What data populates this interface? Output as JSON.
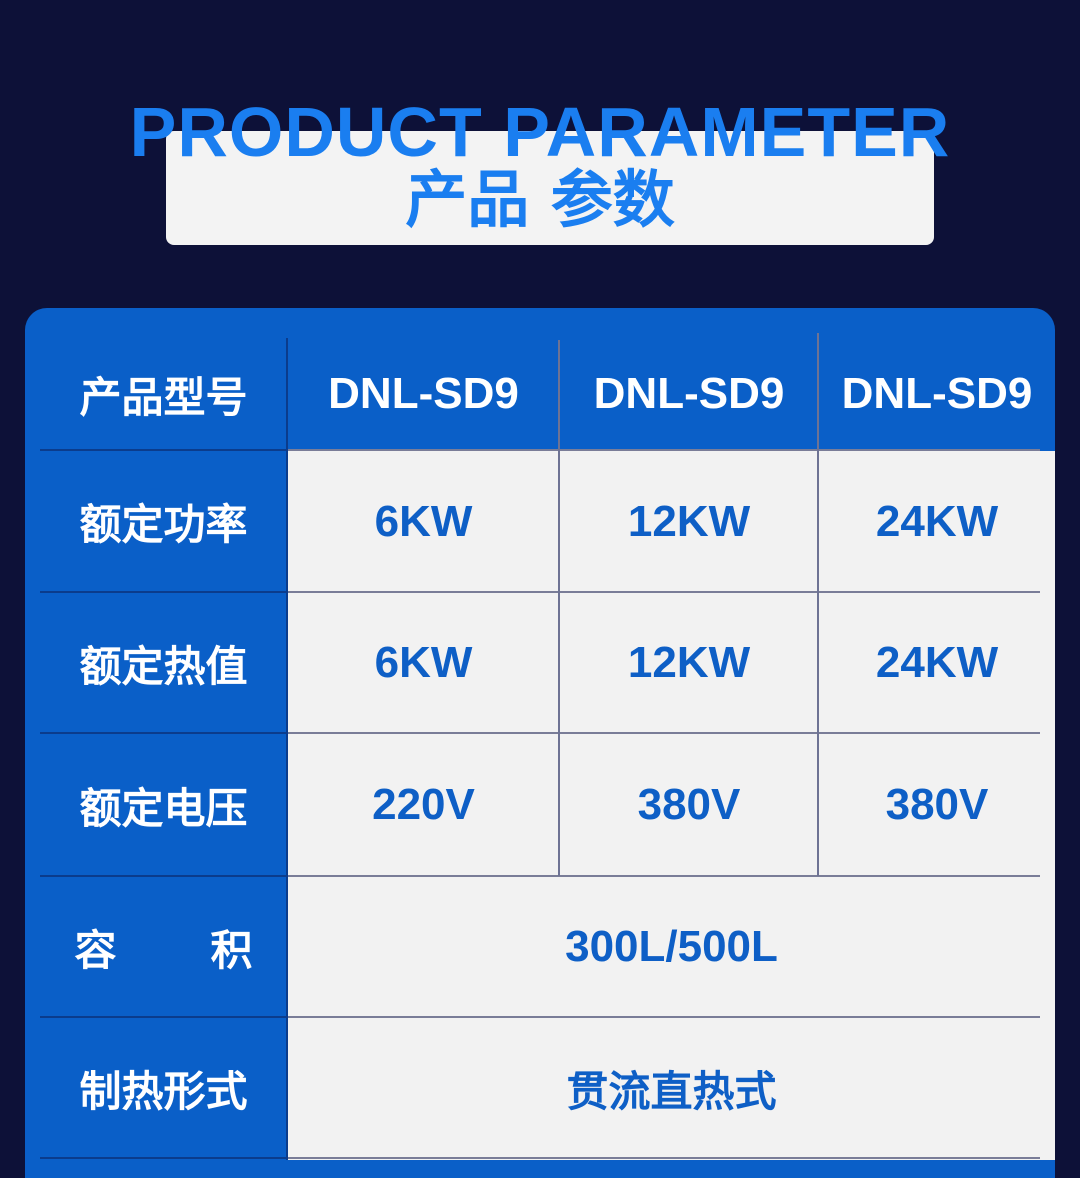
{
  "header": {
    "title_en": "PRODUCT PARAMETER",
    "title_cn": "产品 参数"
  },
  "colors": {
    "background": "#0d1138",
    "accent_blue": "#0a5fc8",
    "title_blue": "#1a7ef0",
    "value_blue": "#0e5fc6",
    "cell_bg": "#f2f2f2"
  },
  "table": {
    "model_label": "产品型号",
    "models": [
      "DNL-SD9",
      "DNL-SD9",
      "DNL-SD9"
    ],
    "rows": [
      {
        "label": "额定功率",
        "values": [
          "6KW",
          "12KW",
          "24KW"
        ]
      },
      {
        "label": "额定热值",
        "values": [
          "6KW",
          "12KW",
          "24KW"
        ]
      },
      {
        "label": "额定电压",
        "values": [
          "220V",
          "380V",
          "380V"
        ]
      }
    ],
    "volume": {
      "label_a": "容",
      "label_b": "积",
      "value": "300L/500L"
    },
    "heating": {
      "label": "制热形式",
      "value": "贯流直热式"
    }
  }
}
